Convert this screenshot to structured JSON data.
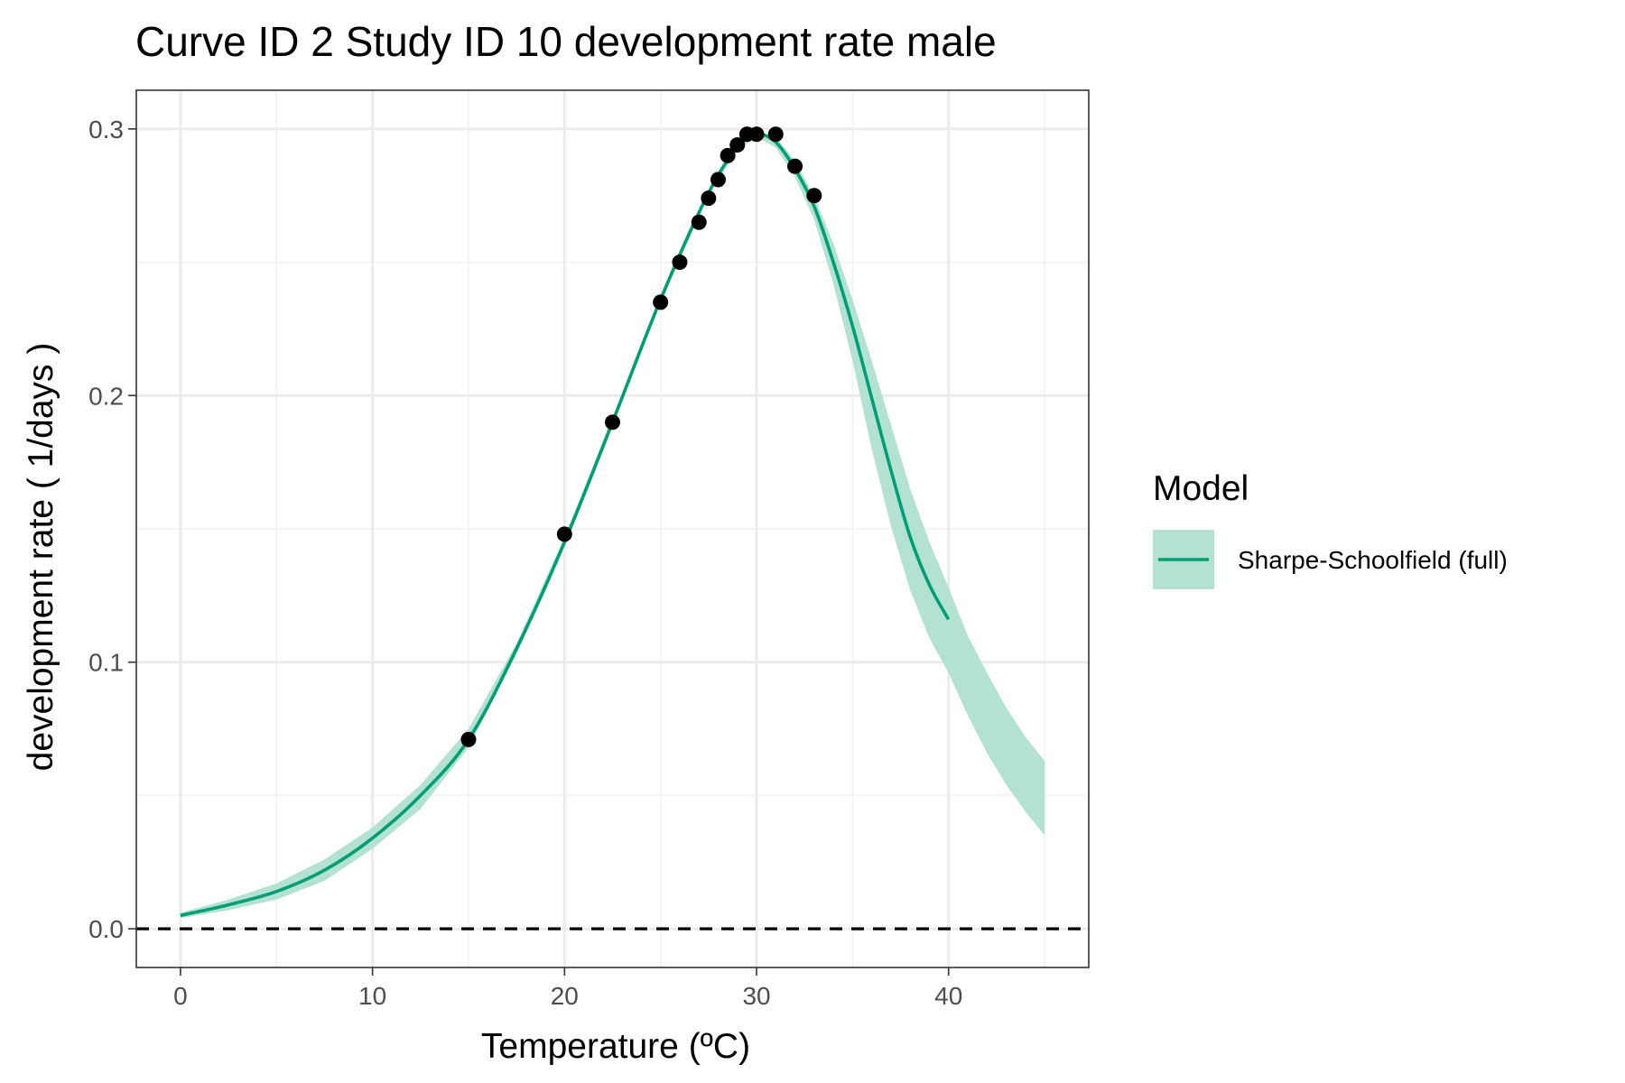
{
  "chart_data": {
    "type": "line",
    "title": "Curve ID 2 Study ID 10 development rate male",
    "xlabel": "Temperature (ºC)",
    "ylabel": "development rate ( 1/days )",
    "xlim": [
      -2.3,
      47.3
    ],
    "ylim": [
      -0.0145,
      0.3145
    ],
    "x_ticks": [
      0,
      10,
      20,
      30,
      40
    ],
    "x_tick_labels": [
      "0",
      "10",
      "20",
      "30",
      "40"
    ],
    "y_ticks": [
      0.0,
      0.1,
      0.2,
      0.3
    ],
    "y_tick_labels": [
      "0.0",
      "0.1",
      "0.2",
      "0.3"
    ],
    "grid": true,
    "reference_line": {
      "y": 0.0,
      "style": "dashed",
      "color": "#000000"
    },
    "legend": {
      "title": "Model",
      "placement": "right",
      "entries": [
        "Sharpe-Schoolfield (full)"
      ]
    },
    "colors": {
      "line": "#009E73",
      "ribbon": "#b3e2d2",
      "points": "#000000"
    },
    "observed_points": {
      "x": [
        15,
        20,
        22.5,
        25,
        26,
        27,
        27.5,
        28,
        28.5,
        29,
        29.5,
        30,
        31,
        32,
        33
      ],
      "y": [
        0.071,
        0.148,
        0.19,
        0.235,
        0.25,
        0.265,
        0.274,
        0.281,
        0.29,
        0.294,
        0.298,
        0.298,
        0.298,
        0.286,
        0.275
      ]
    },
    "series": [
      {
        "name": "Sharpe-Schoolfield (full)",
        "x": [
          0,
          2.5,
          5,
          7.5,
          10,
          12.5,
          15,
          17.5,
          20,
          22.5,
          25,
          27.5,
          29,
          30,
          31,
          32,
          33,
          34,
          35,
          36,
          37,
          38,
          39,
          40
        ],
        "y": [
          0.005,
          0.009,
          0.014,
          0.022,
          0.034,
          0.05,
          0.071,
          0.105,
          0.145,
          0.19,
          0.236,
          0.276,
          0.293,
          0.298,
          0.295,
          0.285,
          0.271,
          0.25,
          0.226,
          0.199,
          0.172,
          0.147,
          0.129,
          0.116
        ]
      }
    ],
    "ribbon": {
      "x": [
        0,
        2.5,
        5,
        7.5,
        10,
        12.5,
        15,
        17.5,
        20,
        22.5,
        25,
        27.5,
        29,
        30,
        31,
        32,
        33,
        34,
        35,
        36,
        37,
        38,
        39,
        40,
        41,
        42,
        43,
        44,
        45
      ],
      "lower": [
        0.004,
        0.007,
        0.011,
        0.018,
        0.03,
        0.045,
        0.068,
        0.103,
        0.144,
        0.189,
        0.235,
        0.275,
        0.292,
        0.297,
        0.293,
        0.282,
        0.266,
        0.242,
        0.213,
        0.18,
        0.151,
        0.127,
        0.109,
        0.096,
        0.08,
        0.066,
        0.054,
        0.044,
        0.035
      ],
      "upper": [
        0.006,
        0.011,
        0.017,
        0.026,
        0.038,
        0.054,
        0.075,
        0.107,
        0.147,
        0.192,
        0.237,
        0.277,
        0.294,
        0.299,
        0.297,
        0.288,
        0.275,
        0.257,
        0.236,
        0.213,
        0.189,
        0.165,
        0.145,
        0.128,
        0.11,
        0.096,
        0.083,
        0.072,
        0.063
      ]
    }
  }
}
